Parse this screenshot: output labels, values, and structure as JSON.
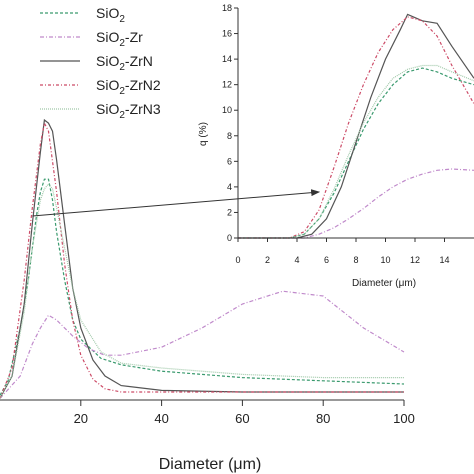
{
  "chart_data": [
    {
      "type": "line",
      "xlabel": "Diameter (μm)",
      "ylabel": "",
      "xlim": [
        0,
        100
      ],
      "ylim": [
        0,
        20
      ],
      "x_ticks": [
        20,
        40,
        60,
        80,
        100
      ],
      "x_tick_labels": [
        "20",
        "40",
        "60",
        "80",
        "100"
      ],
      "legend": {
        "placement": "top-left",
        "entries": [
          {
            "key": "sio2",
            "label": [
              "SiO",
              "2",
              ""
            ]
          },
          {
            "key": "sio2zr",
            "label": [
              "SiO",
              "2",
              "-Zr"
            ]
          },
          {
            "key": "sio2zrn",
            "label": [
              "SiO",
              "2",
              "-ZrN"
            ]
          },
          {
            "key": "sio2zrn2",
            "label": [
              "SiO",
              "2",
              "-ZrN2"
            ]
          },
          {
            "key": "sio2zrn3",
            "label": [
              "SiO",
              "2",
              "-ZrN3"
            ]
          }
        ]
      },
      "series": [
        {
          "key": "sio2",
          "color": "#3a9a6e",
          "dash": "3,2",
          "points": [
            [
              0,
              0.3
            ],
            [
              2,
              1.2
            ],
            [
              5,
              4.5
            ],
            [
              7,
              7.5
            ],
            [
              9,
              11.5
            ],
            [
              10,
              13.0
            ],
            [
              11,
              13.8
            ],
            [
              12,
              13.8
            ],
            [
              13,
              12.5
            ],
            [
              14,
              10.5
            ],
            [
              16,
              7.5
            ],
            [
              18,
              5.0
            ],
            [
              20,
              3.8
            ],
            [
              25,
              2.6
            ],
            [
              30,
              2.2
            ],
            [
              40,
              1.8
            ],
            [
              60,
              1.4
            ],
            [
              80,
              1.2
            ],
            [
              100,
              1.0
            ]
          ]
        },
        {
          "key": "sio2zr",
          "color": "#c08acb",
          "dash": "4,2,1,2",
          "points": [
            [
              0,
              0.1
            ],
            [
              5,
              1.5
            ],
            [
              8,
              3.5
            ],
            [
              10,
              4.5
            ],
            [
              12,
              5.3
            ],
            [
              14,
              5.0
            ],
            [
              18,
              4.0
            ],
            [
              22,
              3.2
            ],
            [
              26,
              2.8
            ],
            [
              30,
              2.8
            ],
            [
              40,
              3.3
            ],
            [
              50,
              4.5
            ],
            [
              60,
              6.0
            ],
            [
              70,
              6.8
            ],
            [
              80,
              6.5
            ],
            [
              90,
              4.5
            ],
            [
              100,
              3.0
            ]
          ]
        },
        {
          "key": "sio2zrn",
          "color": "#555555",
          "dash": "",
          "points": [
            [
              0,
              0.1
            ],
            [
              3,
              1.5
            ],
            [
              6,
              6.0
            ],
            [
              8,
              11.0
            ],
            [
              10,
              15.5
            ],
            [
              11,
              17.5
            ],
            [
              12,
              17.3
            ],
            [
              13,
              16.8
            ],
            [
              14,
              15.0
            ],
            [
              16,
              11.0
            ],
            [
              18,
              7.0
            ],
            [
              20,
              4.5
            ],
            [
              23,
              2.5
            ],
            [
              26,
              1.5
            ],
            [
              30,
              0.9
            ],
            [
              40,
              0.6
            ],
            [
              60,
              0.5
            ],
            [
              100,
              0.5
            ]
          ]
        },
        {
          "key": "sio2zrn2",
          "color": "#cc4a66",
          "dash": "3,2,1,2",
          "points": [
            [
              0,
              0.1
            ],
            [
              3,
              2.0
            ],
            [
              6,
              7.5
            ],
            [
              8,
              12.0
            ],
            [
              10,
              16.0
            ],
            [
              11,
              17.3
            ],
            [
              12,
              16.8
            ],
            [
              14,
              13.0
            ],
            [
              16,
              8.5
            ],
            [
              18,
              5.0
            ],
            [
              20,
              2.8
            ],
            [
              23,
              1.3
            ],
            [
              26,
              0.7
            ],
            [
              30,
              0.5
            ],
            [
              40,
              0.5
            ],
            [
              100,
              0.5
            ]
          ]
        },
        {
          "key": "sio2zrn3",
          "color": "#9fc8a8",
          "dash": "1,1",
          "points": [
            [
              0,
              0.1
            ],
            [
              3,
              1.5
            ],
            [
              6,
              5.5
            ],
            [
              8,
              9.5
            ],
            [
              10,
              12.5
            ],
            [
              11,
              13.2
            ],
            [
              12,
              13.5
            ],
            [
              13,
              13.2
            ],
            [
              14,
              12.0
            ],
            [
              16,
              9.5
            ],
            [
              18,
              7.0
            ],
            [
              20,
              5.0
            ],
            [
              25,
              3.0
            ],
            [
              30,
              2.3
            ],
            [
              40,
              2.0
            ],
            [
              60,
              1.6
            ],
            [
              80,
              1.4
            ],
            [
              100,
              1.4
            ]
          ]
        }
      ]
    },
    {
      "type": "line",
      "role": "inset",
      "xlabel": "Diameter (μm)",
      "ylabel": "q (%)",
      "xlim": [
        0,
        16
      ],
      "ylim": [
        0,
        18
      ],
      "x_ticks": [
        0,
        2,
        4,
        6,
        8,
        10,
        12,
        14
      ],
      "x_tick_labels": [
        "0",
        "2",
        "4",
        "6",
        "8",
        "10",
        "12",
        "14"
      ],
      "y_ticks": [
        0,
        2,
        4,
        6,
        8,
        10,
        12,
        14,
        16,
        18
      ],
      "y_tick_labels": [
        "0",
        "2",
        "4",
        "6",
        "8",
        "10",
        "12",
        "14",
        "16",
        "18"
      ],
      "series": [
        {
          "key": "sio2",
          "color": "#3a9a6e",
          "dash": "3,2",
          "points": [
            [
              0,
              0
            ],
            [
              3.5,
              0
            ],
            [
              4.5,
              0.3
            ],
            [
              5.5,
              1.5
            ],
            [
              6.5,
              3.5
            ],
            [
              7.5,
              6.0
            ],
            [
              8.5,
              8.5
            ],
            [
              9.5,
              10.5
            ],
            [
              10.5,
              12.0
            ],
            [
              11.5,
              13.0
            ],
            [
              12.5,
              13.3
            ],
            [
              13.5,
              13.0
            ],
            [
              14.5,
              12.5
            ],
            [
              16,
              12.0
            ]
          ]
        },
        {
          "key": "sio2zr",
          "color": "#c08acb",
          "dash": "4,2,1,2",
          "points": [
            [
              0,
              0
            ],
            [
              4.5,
              0
            ],
            [
              5.5,
              0.3
            ],
            [
              6.5,
              0.8
            ],
            [
              7.5,
              1.5
            ],
            [
              8.5,
              2.3
            ],
            [
              9.5,
              3.2
            ],
            [
              10.5,
              4.0
            ],
            [
              11.5,
              4.6
            ],
            [
              12.5,
              5.0
            ],
            [
              13.5,
              5.3
            ],
            [
              14.5,
              5.4
            ],
            [
              16,
              5.3
            ]
          ]
        },
        {
          "key": "sio2zrn",
          "color": "#555555",
          "dash": "",
          "points": [
            [
              0,
              0
            ],
            [
              4,
              0
            ],
            [
              5,
              0.3
            ],
            [
              6,
              1.5
            ],
            [
              7,
              4.0
            ],
            [
              8,
              7.5
            ],
            [
              9,
              11.0
            ],
            [
              10,
              14.0
            ],
            [
              11,
              16.3
            ],
            [
              11.5,
              17.5
            ],
            [
              12.5,
              17.0
            ],
            [
              13.5,
              16.8
            ],
            [
              14.5,
              15.0
            ],
            [
              16,
              12.5
            ]
          ]
        },
        {
          "key": "sio2zrn2",
          "color": "#cc4a66",
          "dash": "3,2,1,2",
          "points": [
            [
              0,
              0
            ],
            [
              3.5,
              0
            ],
            [
              4.5,
              0.5
            ],
            [
              5.5,
              2.2
            ],
            [
              6.5,
              5.5
            ],
            [
              7.5,
              9.0
            ],
            [
              8.5,
              12.0
            ],
            [
              9.5,
              14.5
            ],
            [
              10.5,
              16.3
            ],
            [
              11.5,
              17.3
            ],
            [
              12.5,
              17.0
            ],
            [
              13.5,
              15.8
            ],
            [
              14.5,
              13.5
            ],
            [
              16,
              10.5
            ]
          ]
        },
        {
          "key": "sio2zrn3",
          "color": "#9fc8a8",
          "dash": "1,1",
          "points": [
            [
              0,
              0
            ],
            [
              3.5,
              0
            ],
            [
              4.5,
              0.3
            ],
            [
              5.5,
              1.5
            ],
            [
              6.5,
              3.8
            ],
            [
              7.5,
              6.5
            ],
            [
              8.5,
              9.0
            ],
            [
              9.5,
              11.0
            ],
            [
              10.5,
              12.5
            ],
            [
              11.5,
              13.2
            ],
            [
              12.5,
              13.5
            ],
            [
              13.5,
              13.5
            ],
            [
              14.5,
              13.0
            ],
            [
              16,
              12.3
            ]
          ]
        }
      ]
    }
  ],
  "arrow": {
    "from": [
      8,
      11.5
    ],
    "to": [
      5.5,
      3.6
    ]
  }
}
